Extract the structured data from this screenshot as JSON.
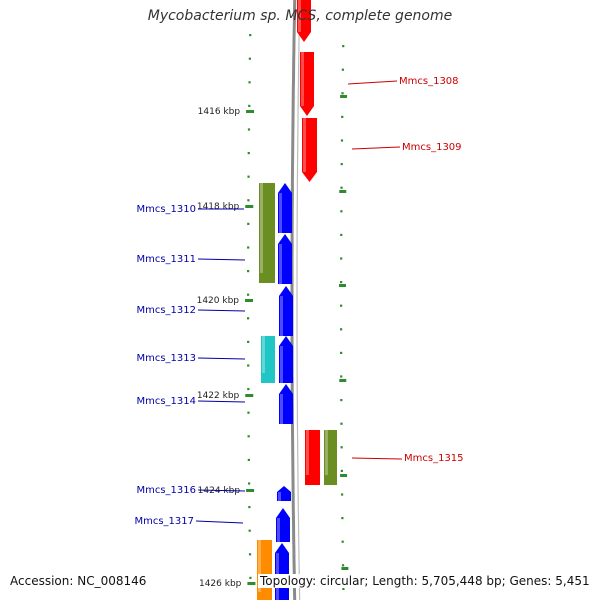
{
  "title": "Mycobacterium sp. MCS, complete genome",
  "footer": {
    "accession": "Accession: NC_008146",
    "topology": "Topology: circular; Length: 5,705,448 bp; Genes: 5,451"
  },
  "colors": {
    "backbone": "#8a8a8a",
    "tick": "#2e8b2e",
    "forward_label": "#cc0000",
    "reverse_label": "#0000aa"
  },
  "ticks": [
    "1416 kbp",
    "1418 kbp",
    "1420 kbp",
    "1422 kbp",
    "1424 kbp",
    "1426 kbp"
  ],
  "forward_genes": [
    {
      "label": "",
      "color": "#ff0000"
    },
    {
      "label": "Mmcs_1308",
      "color": "#ff0000"
    },
    {
      "label": "Mmcs_1309",
      "color": "#ff0000"
    },
    {
      "label": "Mmcs_1315",
      "color": "#ff0000"
    },
    {
      "label": "",
      "color": "#6b8e23"
    }
  ],
  "reverse_genes": [
    {
      "label": "Mmcs_1310",
      "color": "#0000ff"
    },
    {
      "label": "Mmcs_1311",
      "color": "#0000ff"
    },
    {
      "label": "Mmcs_1312",
      "color": "#0000ff"
    },
    {
      "label": "Mmcs_1313",
      "color": "#0000ff"
    },
    {
      "label": "Mmcs_1314",
      "color": "#0000ff"
    },
    {
      "label": "Mmcs_1316",
      "color": "#0000ff"
    },
    {
      "label": "Mmcs_1317",
      "color": "#0000ff"
    },
    {
      "label": "",
      "color": "#0000ff"
    }
  ],
  "other_features": [
    {
      "label": "",
      "color": "#6b8e23"
    },
    {
      "label": "",
      "color": "#20c5c5"
    },
    {
      "label": "",
      "color": "#ff8c00"
    }
  ]
}
